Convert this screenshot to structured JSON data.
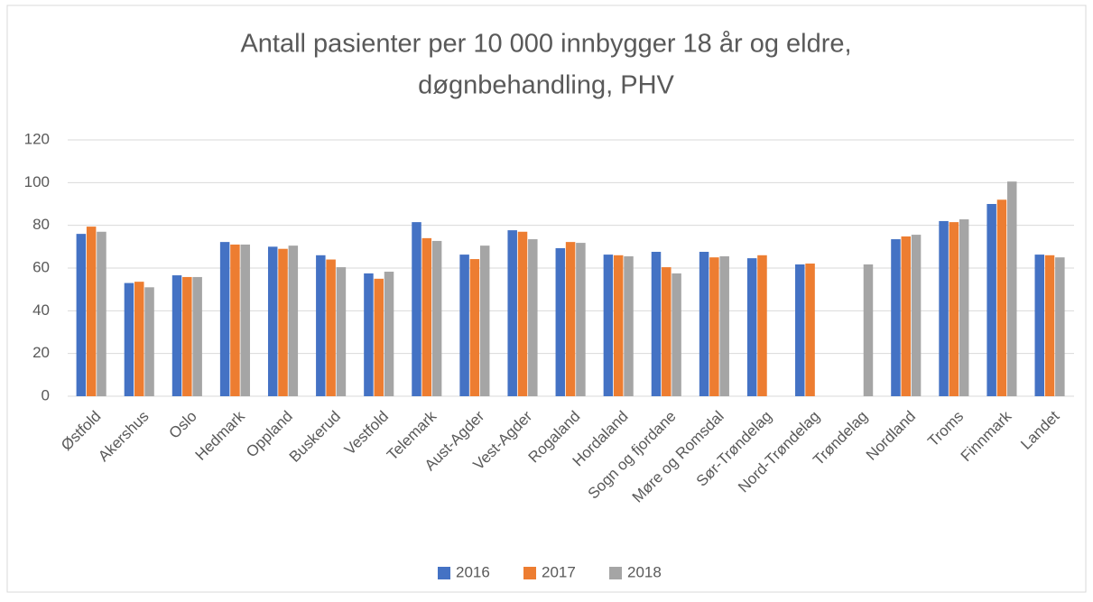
{
  "chart_data": {
    "type": "bar",
    "title": [
      "Antall pasienter per 10 000 innbygger 18 år og eldre,",
      "døgnbehandling, PHV"
    ],
    "categories": [
      "Østfold",
      "Akershus",
      "Oslo",
      "Hedmark",
      "Oppland",
      "Buskerud",
      "Vestfold",
      "Telemark",
      "Aust-Agder",
      "Vest-Agder",
      "Rogaland",
      "Hordaland",
      "Sogn og fjordane",
      "Møre og Romsdal",
      "Sør-Trøndelag",
      "Nord-Trøndelag",
      "Trøndelag",
      "Nordland",
      "Troms",
      "Finnmark",
      "Landet"
    ],
    "series": [
      {
        "name": "2016",
        "color": "#4472c4",
        "values": [
          76,
          53,
          56.6,
          72.2,
          70,
          66,
          57.5,
          81.5,
          66.3,
          77.7,
          69.3,
          66.3,
          67.6,
          67.6,
          64.6,
          61.7,
          null,
          73.5,
          82,
          90,
          66.3
        ]
      },
      {
        "name": "2017",
        "color": "#ed7d31",
        "values": [
          79.4,
          53.6,
          55.8,
          71,
          69,
          64,
          55,
          74,
          64.2,
          77,
          72.2,
          66,
          60.4,
          65,
          66,
          62.1,
          null,
          74.8,
          81.5,
          92,
          66
        ]
      },
      {
        "name": "2018",
        "color": "#a5a5a5",
        "values": [
          77,
          51,
          55.8,
          71,
          70.5,
          60.4,
          58.3,
          72.7,
          70.5,
          73.5,
          71.8,
          65.5,
          57.5,
          65.5,
          null,
          null,
          61.7,
          75.6,
          82.8,
          100.5,
          65
        ]
      }
    ],
    "ylim": [
      0,
      120
    ],
    "yticks": [
      0,
      20,
      40,
      60,
      80,
      100,
      120
    ],
    "grid": true,
    "legend": "bottom"
  }
}
